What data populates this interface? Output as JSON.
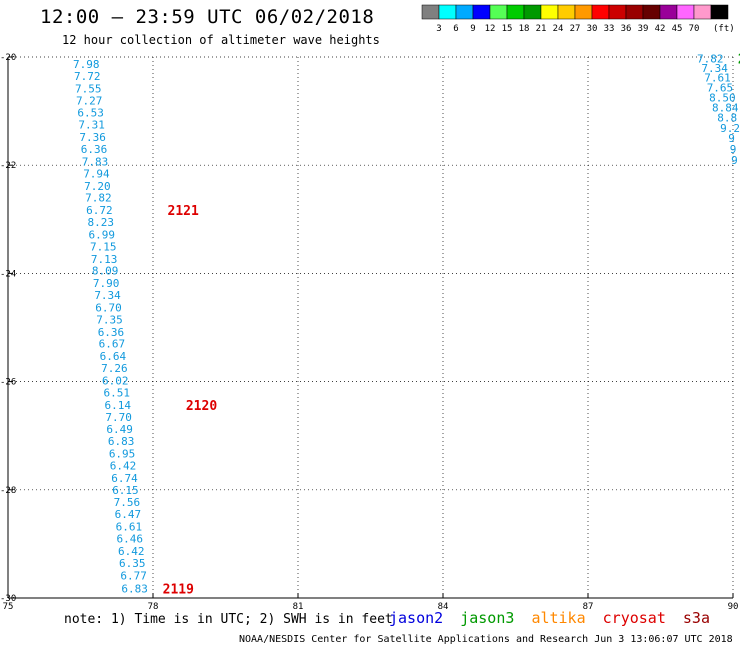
{
  "header": {
    "title": "12:00 — 23:59 UTC 06/02/2018",
    "subtitle": "12 hour collection of altimeter wave heights"
  },
  "legend": {
    "colors": [
      "#808080",
      "#00ffff",
      "#00aaff",
      "#0000ff",
      "#55ff55",
      "#00cc00",
      "#009900",
      "#ffff00",
      "#ffcc00",
      "#ff9900",
      "#ff0000",
      "#cc0000",
      "#990000",
      "#660000",
      "#990099",
      "#ff66ff",
      "#ff99cc",
      "#000000"
    ],
    "labels": [
      "3",
      "6",
      "9",
      "12",
      "15",
      "18",
      "21",
      "24",
      "27",
      "30",
      "33",
      "36",
      "39",
      "42",
      "45",
      "70"
    ],
    "unit": "(ft)"
  },
  "chart_data": {
    "type": "scatter",
    "xlim": [
      75,
      90
    ],
    "ylim": [
      -30,
      -20
    ],
    "x_ticks": [
      "75",
      "78",
      "81",
      "84",
      "87",
      "90"
    ],
    "y_ticks": [
      "-20",
      "-22",
      "-24",
      "-26",
      "-28",
      "-30"
    ],
    "grid": true,
    "series": [
      {
        "name": "jason2",
        "color": "#1199dd",
        "points": [
          {
            "x": 76.62,
            "y": -20.13,
            "label": "7.98"
          },
          {
            "x": 76.64,
            "y": -20.35,
            "label": "7.72"
          },
          {
            "x": 76.66,
            "y": -20.58,
            "label": "7.55"
          },
          {
            "x": 76.68,
            "y": -20.8,
            "label": "7.27"
          },
          {
            "x": 76.71,
            "y": -21.03,
            "label": "6.53"
          },
          {
            "x": 76.73,
            "y": -21.25,
            "label": "7.31"
          },
          {
            "x": 76.75,
            "y": -21.48,
            "label": "7.36"
          },
          {
            "x": 76.78,
            "y": -21.7,
            "label": "6.36"
          },
          {
            "x": 76.8,
            "y": -21.93,
            "label": "7.83"
          },
          {
            "x": 76.83,
            "y": -22.15,
            "label": "7.94"
          },
          {
            "x": 76.85,
            "y": -22.38,
            "label": "7.20"
          },
          {
            "x": 76.87,
            "y": -22.6,
            "label": "7.82"
          },
          {
            "x": 76.89,
            "y": -22.83,
            "label": "6.72"
          },
          {
            "x": 76.92,
            "y": -23.05,
            "label": "8.23"
          },
          {
            "x": 76.94,
            "y": -23.28,
            "label": "6.99"
          },
          {
            "x": 76.97,
            "y": -23.5,
            "label": "7.15"
          },
          {
            "x": 76.99,
            "y": -23.73,
            "label": "7.13"
          },
          {
            "x": 77.01,
            "y": -23.95,
            "label": "8.09"
          },
          {
            "x": 77.03,
            "y": -24.18,
            "label": "7.90"
          },
          {
            "x": 77.06,
            "y": -24.4,
            "label": "7.34"
          },
          {
            "x": 77.08,
            "y": -24.63,
            "label": "6.70"
          },
          {
            "x": 77.1,
            "y": -24.85,
            "label": "7.35"
          },
          {
            "x": 77.13,
            "y": -25.08,
            "label": "6.36"
          },
          {
            "x": 77.15,
            "y": -25.3,
            "label": "6.67"
          },
          {
            "x": 77.17,
            "y": -25.53,
            "label": "6.64"
          },
          {
            "x": 77.2,
            "y": -25.75,
            "label": "7.26"
          },
          {
            "x": 77.22,
            "y": -25.98,
            "label": "6.02"
          },
          {
            "x": 77.25,
            "y": -26.2,
            "label": "6.51"
          },
          {
            "x": 77.27,
            "y": -26.43,
            "label": "6.14"
          },
          {
            "x": 77.29,
            "y": -26.65,
            "label": "7.70"
          },
          {
            "x": 77.31,
            "y": -26.88,
            "label": "6.49"
          },
          {
            "x": 77.34,
            "y": -27.1,
            "label": "6.83"
          },
          {
            "x": 77.36,
            "y": -27.33,
            "label": "6.95"
          },
          {
            "x": 77.38,
            "y": -27.55,
            "label": "6.42"
          },
          {
            "x": 77.41,
            "y": -27.78,
            "label": "6.74"
          },
          {
            "x": 77.43,
            "y": -28.0,
            "label": "6.15"
          },
          {
            "x": 77.46,
            "y": -28.23,
            "label": "7.56"
          },
          {
            "x": 77.48,
            "y": -28.45,
            "label": "6.47"
          },
          {
            "x": 77.5,
            "y": -28.68,
            "label": "6.61"
          },
          {
            "x": 77.52,
            "y": -28.9,
            "label": "6.46"
          },
          {
            "x": 77.55,
            "y": -29.13,
            "label": "6.42"
          },
          {
            "x": 77.57,
            "y": -29.35,
            "label": "6.35"
          },
          {
            "x": 77.6,
            "y": -29.58,
            "label": "6.77"
          },
          {
            "x": 77.62,
            "y": -29.82,
            "label": "6.83"
          },
          {
            "x": 89.53,
            "y": -20.03,
            "label": "7.82"
          },
          {
            "x": 89.62,
            "y": -20.2,
            "label": "7.34"
          },
          {
            "x": 89.68,
            "y": -20.38,
            "label": "7.61"
          },
          {
            "x": 89.73,
            "y": -20.56,
            "label": "7.65"
          },
          {
            "x": 89.78,
            "y": -20.75,
            "label": "8.50"
          },
          {
            "x": 89.84,
            "y": -20.93,
            "label": "8.84"
          },
          {
            "x": 89.88,
            "y": -21.12,
            "label": "8.8"
          },
          {
            "x": 89.94,
            "y": -21.31,
            "label": "9.2"
          },
          {
            "x": 89.97,
            "y": -21.5,
            "label": "9"
          },
          {
            "x": 90.0,
            "y": -21.7,
            "label": "9"
          },
          {
            "x": 90.03,
            "y": -21.9,
            "label": "9"
          }
        ]
      }
    ],
    "time_labels": [
      {
        "x": 78.3,
        "y": -22.83,
        "label": "2121"
      },
      {
        "x": 78.68,
        "y": -26.43,
        "label": "2120"
      },
      {
        "x": 78.2,
        "y": -29.82,
        "label": "2119"
      },
      {
        "x": 90.1,
        "y": -20.03,
        "label": "2"
      }
    ],
    "time_label_colors": [
      "#dd0000",
      "#dd0000",
      "#dd0000",
      "#009900"
    ]
  },
  "footer": {
    "note": "note: 1) Time is in UTC; 2) SWH is in feet",
    "satellites": [
      {
        "name": "jason2",
        "color": "#0000dd"
      },
      {
        "name": "jason3",
        "color": "#009900"
      },
      {
        "name": "altika",
        "color": "#ff8800"
      },
      {
        "name": "cryosat",
        "color": "#dd0000"
      },
      {
        "name": "s3a",
        "color": "#990000"
      }
    ],
    "credit": "NOAA/NESDIS Center for Satellite Applications and Research   Jun  3 13:06:07 UTC 2018"
  }
}
